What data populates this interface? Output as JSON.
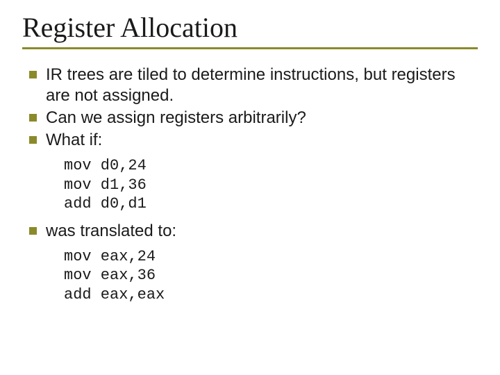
{
  "colors": {
    "accent": "#8a8a2a",
    "bullet": "#8a8a2a",
    "text": "#1a1a1a",
    "background": "#ffffff"
  },
  "title": "Register Allocation",
  "bullets_top": [
    "IR trees are tiled to determine instructions, but registers are not assigned.",
    "Can we assign registers arbitrarily?",
    "What if:"
  ],
  "code_top": "mov d0,24\nmov d1,36\nadd d0,d1",
  "bullets_bottom": [
    "was translated to:"
  ],
  "code_bottom": "mov eax,24\nmov eax,36\nadd eax,eax"
}
